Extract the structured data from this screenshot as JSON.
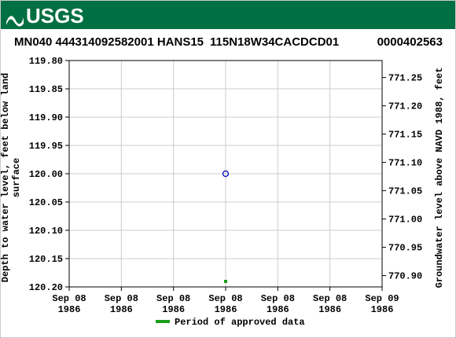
{
  "header": {
    "logo": "USGS"
  },
  "chart_data": {
    "type": "scatter",
    "title_parts": [
      "MN040 444314092582001 HANS15",
      "115N18W34CACDCD01",
      "0000402563"
    ],
    "y_label": "Depth to water level, feet below land\nsurface",
    "y2_label": "Groundwater level above NAVD 1988, feet",
    "xlim": [
      0,
      24
    ],
    "xticks": [
      {
        "value": 0,
        "label": "Sep 08\n1986"
      },
      {
        "value": 4,
        "label": "Sep 08\n1986"
      },
      {
        "value": 8,
        "label": "Sep 08\n1986"
      },
      {
        "value": 12,
        "label": "Sep 08\n1986"
      },
      {
        "value": 16,
        "label": "Sep 08\n1986"
      },
      {
        "value": 20,
        "label": "Sep 08\n1986"
      },
      {
        "value": 24,
        "label": "Sep 09\n1986"
      }
    ],
    "ylim": [
      119.8,
      120.2
    ],
    "yticks": [
      {
        "value": 119.8,
        "label": "119.80"
      },
      119.85,
      {
        "value": 119.9,
        "label": "119.90"
      },
      119.95,
      {
        "value": 120.0,
        "label": "120.00"
      },
      120.05,
      {
        "value": 120.1,
        "label": "120.10"
      },
      120.15,
      {
        "value": 120.2,
        "label": "120.20"
      }
    ],
    "y2lim": [
      771.28,
      770.88
    ],
    "y2ticks": [
      771.25,
      {
        "value": 771.2,
        "label": "771.20"
      },
      771.15,
      {
        "value": 771.1,
        "label": "771.10"
      },
      771.05,
      {
        "value": 771.0,
        "label": "771.00"
      },
      770.95,
      {
        "value": 770.9,
        "label": "770.90"
      }
    ],
    "grid": true,
    "series": [
      {
        "color": "#0000cc",
        "x": [
          12
        ],
        "values": [
          120.0
        ]
      }
    ],
    "approved_period": {
      "name": "Period of approved data",
      "color": "#1a9e1a",
      "x": [
        12
      ]
    }
  }
}
